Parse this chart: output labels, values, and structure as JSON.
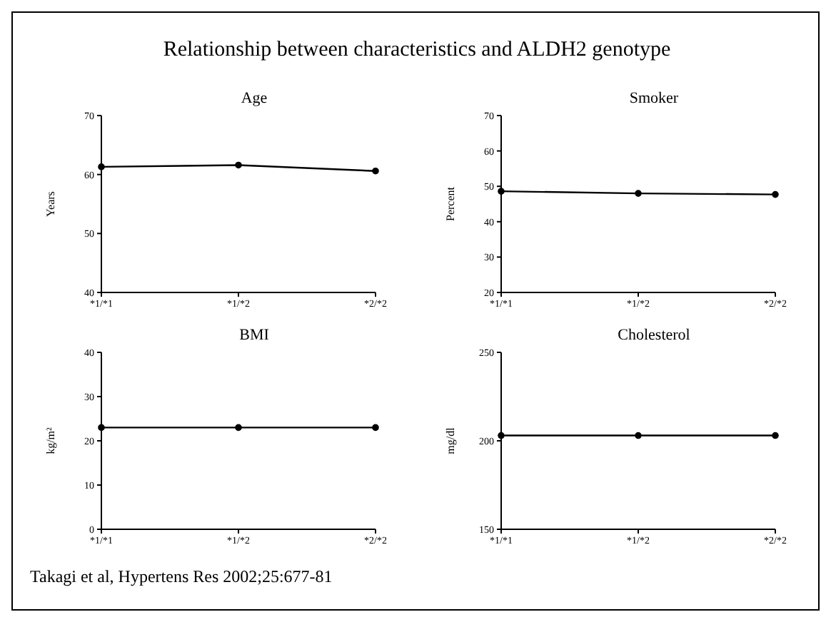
{
  "chart_data": [
    {
      "type": "line",
      "title": "Age",
      "ylabel": "Years",
      "categories": [
        "*1/*1",
        "*1/*2",
        "*2/*2"
      ],
      "values": [
        61.3,
        61.6,
        60.6
      ],
      "color": "#000000",
      "ylim": [
        40,
        70
      ],
      "yticks": [
        40,
        50,
        60,
        70
      ],
      "marker": "circle",
      "line_style": "solid",
      "grid": false,
      "legend": false,
      "annotations": [
        "Relationship between characteristics and ALDH2 genotype",
        "Takagi et al, Hypertens Res 2002;25:677-81"
      ]
    },
    {
      "type": "line",
      "title": "Smoker",
      "ylabel": "Percent",
      "categories": [
        "*1/*1",
        "*1/*2",
        "*2/*2"
      ],
      "values": [
        48.6,
        48,
        47.7
      ],
      "color": "#000000",
      "ylim": [
        20,
        70
      ],
      "yticks": [
        20,
        30,
        40,
        50,
        60,
        70
      ],
      "marker": "circle",
      "line_style": "solid",
      "grid": false,
      "legend": false
    },
    {
      "type": "line",
      "title": "BMI",
      "ylabel": "kg/m²",
      "categories": [
        "*1/*1",
        "*1/*2",
        "*2/*2"
      ],
      "values": [
        23,
        23,
        23
      ],
      "color": "#000000",
      "ylim": [
        0,
        40
      ],
      "yticks": [
        0,
        10,
        20,
        30,
        40
      ],
      "marker": "circle",
      "line_style": "solid",
      "grid": false,
      "legend": false
    },
    {
      "type": "line",
      "title": "Cholesterol",
      "ylabel": "mg/dl",
      "categories": [
        "*1/*1",
        "*1/*2",
        "*2/*2"
      ],
      "values": [
        203,
        203,
        203
      ],
      "color": "#000000",
      "ylim": [
        150,
        250
      ],
      "yticks": [
        150,
        200,
        250
      ],
      "marker": "circle",
      "line_style": "solid",
      "grid": false,
      "legend": false
    }
  ]
}
